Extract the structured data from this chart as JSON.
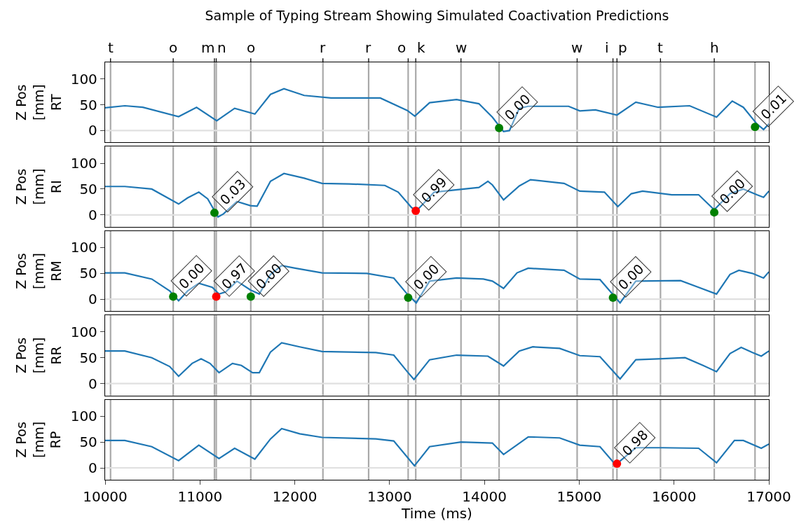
{
  "chart_data": [
    {
      "type": "line",
      "title": "Sample of Typing Stream Showing Simulated Coactivation Predictions",
      "ylabel": "Z Pos\n[mm]\nRT",
      "xlim": [
        10000,
        17000
      ],
      "ylim": [
        -23,
        132
      ],
      "yticks": [
        0,
        50,
        100
      ],
      "tick_labels": "y",
      "series": [
        {
          "color": "#1f77b4",
          "x": [
            10000,
            10208,
            10397,
            10775,
            10964,
            11177,
            11366,
            11579,
            11744,
            11886,
            12099,
            12382,
            12902,
            13186,
            13266,
            13422,
            13706,
            13942,
            14084,
            14202,
            14264,
            14368,
            14462,
            14888,
            15006,
            15171,
            15398,
            15597,
            15833,
            16164,
            16448,
            16614,
            16731,
            16873,
            16944,
            17000
          ],
          "values": [
            44,
            48,
            45,
            27,
            45,
            19,
            43,
            32,
            70,
            81,
            68,
            63,
            63,
            39,
            28,
            54,
            60,
            52,
            26,
            -2,
            0,
            43,
            47,
            47,
            38,
            40,
            30,
            55,
            45,
            48,
            26,
            57,
            45,
            13,
            2,
            13
          ]
        },
        {
          "type": "scatter",
          "marker": "circle",
          "x": [
            14155,
            16854
          ],
          "values": [
            5,
            7
          ],
          "colors": [
            "#008000",
            "#008000"
          ]
        }
      ],
      "ref_lines": [
        {
          "axis": "x",
          "value": 10057,
          "label": "t"
        },
        {
          "axis": "x",
          "value": 10718,
          "label": "o"
        },
        {
          "axis": "x",
          "value": 11153,
          "label": "m"
        },
        {
          "axis": "x",
          "value": 11172,
          "label": "n"
        },
        {
          "axis": "x",
          "value": 11536,
          "label": "o"
        },
        {
          "axis": "x",
          "value": 12297,
          "label": "r"
        },
        {
          "axis": "x",
          "value": 12779,
          "label": "r"
        },
        {
          "axis": "x",
          "value": 13196,
          "label": "o"
        },
        {
          "axis": "x",
          "value": 13276,
          "label": "k"
        },
        {
          "axis": "x",
          "value": 13753,
          "label": "w"
        },
        {
          "axis": "x",
          "value": 14155
        },
        {
          "axis": "x",
          "value": 14978,
          "label": "w"
        },
        {
          "axis": "x",
          "value": 15356,
          "label": "i"
        },
        {
          "axis": "x",
          "value": 15398,
          "label": "p"
        },
        {
          "axis": "x",
          "value": 15857,
          "label": "t"
        },
        {
          "axis": "x",
          "value": 16424,
          "label": "h"
        },
        {
          "axis": "x",
          "value": 16854
        },
        {
          "axis": "y",
          "value": 0,
          "color": "#e0e0e0"
        }
      ],
      "annotations": [
        {
          "text": "0.00",
          "x": 14155,
          "y": 5
        },
        {
          "text": "0.01",
          "x": 16854,
          "y": 7
        }
      ]
    },
    {
      "type": "line",
      "ylabel": "Z Pos\n[mm]\nRI",
      "xlim": [
        10000,
        17000
      ],
      "ylim": [
        -23,
        132
      ],
      "yticks": [
        0,
        50,
        100
      ],
      "tick_labels": "y",
      "series": [
        {
          "color": "#1f77b4",
          "x": [
            10000,
            10208,
            10492,
            10775,
            10870,
            10988,
            11082,
            11191,
            11248,
            11390,
            11532,
            11603,
            11744,
            11886,
            12099,
            12288,
            12572,
            12950,
            13091,
            13233,
            13290,
            13470,
            13942,
            14037,
            14084,
            14202,
            14368,
            14486,
            14840,
            15006,
            15266,
            15407,
            15549,
            15668,
            15975,
            16259,
            16424,
            16590,
            16731,
            16873,
            16944,
            17000
          ],
          "values": [
            55,
            55,
            50,
            21,
            33,
            44,
            31,
            -4,
            2,
            26,
            18,
            17,
            65,
            80,
            71,
            61,
            60,
            57,
            44,
            14,
            9,
            44,
            53,
            65,
            58,
            29,
            56,
            68,
            61,
            46,
            44,
            16,
            41,
            46,
            39,
            39,
            10,
            41,
            50,
            39,
            34,
            46
          ]
        },
        {
          "type": "scatter",
          "marker": "circle",
          "x": [
            11153,
            13276,
            16424
          ],
          "values": [
            4,
            8,
            5
          ],
          "colors": [
            "#008000",
            "#ff0000",
            "#008000"
          ]
        }
      ],
      "ref_lines": [
        {
          "axis": "x",
          "value": 10057
        },
        {
          "axis": "x",
          "value": 10718
        },
        {
          "axis": "x",
          "value": 11153
        },
        {
          "axis": "x",
          "value": 11172
        },
        {
          "axis": "x",
          "value": 11536
        },
        {
          "axis": "x",
          "value": 12297
        },
        {
          "axis": "x",
          "value": 12779
        },
        {
          "axis": "x",
          "value": 13196
        },
        {
          "axis": "x",
          "value": 13276
        },
        {
          "axis": "x",
          "value": 13753
        },
        {
          "axis": "x",
          "value": 14155
        },
        {
          "axis": "x",
          "value": 14978
        },
        {
          "axis": "x",
          "value": 15356
        },
        {
          "axis": "x",
          "value": 15398
        },
        {
          "axis": "x",
          "value": 15857
        },
        {
          "axis": "x",
          "value": 16424
        },
        {
          "axis": "x",
          "value": 16854
        },
        {
          "axis": "y",
          "value": 0,
          "color": "#e0e0e0"
        }
      ],
      "annotations": [
        {
          "text": "0.03",
          "x": 11153,
          "y": 4
        },
        {
          "text": "0.99",
          "x": 13276,
          "y": 8
        },
        {
          "text": "0.00",
          "x": 16424,
          "y": 5
        }
      ]
    },
    {
      "type": "line",
      "ylabel": "Z Pos\n[mm]\nRM",
      "xlim": [
        10000,
        17000
      ],
      "ylim": [
        -23,
        132
      ],
      "yticks": [
        0,
        50,
        100
      ],
      "tick_labels": "y",
      "series": [
        {
          "color": "#1f77b4",
          "x": [
            10000,
            10208,
            10492,
            10681,
            10775,
            10870,
            10988,
            11130,
            11201,
            11272,
            11390,
            11532,
            11626,
            11744,
            11862,
            12004,
            12288,
            12761,
            13044,
            13186,
            13281,
            13422,
            13706,
            13989,
            14084,
            14202,
            14344,
            14462,
            14840,
            15006,
            15219,
            15360,
            15431,
            15597,
            16069,
            16259,
            16448,
            16590,
            16684,
            16826,
            16944,
            17000
          ],
          "values": [
            51,
            51,
            39,
            16,
            -3,
            16,
            31,
            23,
            10,
            14,
            35,
            18,
            10,
            48,
            65,
            60,
            51,
            50,
            41,
            10,
            -7,
            35,
            41,
            39,
            35,
            21,
            51,
            60,
            56,
            39,
            38,
            8,
            -7,
            35,
            36,
            23,
            10,
            48,
            56,
            50,
            41,
            53
          ]
        },
        {
          "type": "scatter",
          "marker": "circle",
          "x": [
            10718,
            11172,
            11536,
            13196,
            15356
          ],
          "values": [
            5,
            5,
            5,
            3,
            3
          ],
          "colors": [
            "#008000",
            "#ff0000",
            "#008000",
            "#008000",
            "#008000"
          ]
        }
      ],
      "ref_lines": [
        {
          "axis": "x",
          "value": 10057
        },
        {
          "axis": "x",
          "value": 10718
        },
        {
          "axis": "x",
          "value": 11153
        },
        {
          "axis": "x",
          "value": 11172
        },
        {
          "axis": "x",
          "value": 11536
        },
        {
          "axis": "x",
          "value": 12297
        },
        {
          "axis": "x",
          "value": 12779
        },
        {
          "axis": "x",
          "value": 13196
        },
        {
          "axis": "x",
          "value": 13276
        },
        {
          "axis": "x",
          "value": 13753
        },
        {
          "axis": "x",
          "value": 14155
        },
        {
          "axis": "x",
          "value": 14978
        },
        {
          "axis": "x",
          "value": 15356
        },
        {
          "axis": "x",
          "value": 15398
        },
        {
          "axis": "x",
          "value": 15857
        },
        {
          "axis": "x",
          "value": 16424
        },
        {
          "axis": "x",
          "value": 16854
        },
        {
          "axis": "y",
          "value": 0,
          "color": "#e0e0e0"
        }
      ],
      "annotations": [
        {
          "text": "0.00",
          "x": 10718,
          "y": 5
        },
        {
          "text": "0.97",
          "x": 11172,
          "y": 5
        },
        {
          "text": "0.00",
          "x": 11536,
          "y": 5
        },
        {
          "text": "0.00",
          "x": 13196,
          "y": 3
        },
        {
          "text": "0.00",
          "x": 15356,
          "y": 3
        }
      ]
    },
    {
      "type": "line",
      "ylabel": "Z Pos\n[mm]\nRR",
      "xlim": [
        10000,
        17000
      ],
      "ylim": [
        -23,
        132
      ],
      "yticks": [
        0,
        50,
        100
      ],
      "tick_labels": "y",
      "series": [
        {
          "color": "#1f77b4",
          "x": [
            10000,
            10208,
            10492,
            10681,
            10775,
            10917,
            11012,
            11106,
            11201,
            11343,
            11437,
            11555,
            11626,
            11744,
            11862,
            12052,
            12288,
            12855,
            13044,
            13186,
            13257,
            13422,
            13706,
            14037,
            14202,
            14368,
            14510,
            14793,
            15006,
            15219,
            15431,
            15597,
            15880,
            16117,
            16306,
            16448,
            16590,
            16708,
            16826,
            16920,
            17000
          ],
          "values": [
            63,
            63,
            50,
            33,
            14,
            39,
            48,
            39,
            21,
            39,
            35,
            21,
            21,
            61,
            79,
            71,
            62,
            60,
            55,
            23,
            8,
            46,
            55,
            53,
            34,
            63,
            71,
            68,
            54,
            52,
            9,
            46,
            48,
            50,
            35,
            23,
            58,
            70,
            60,
            53,
            63
          ]
        }
      ],
      "ref_lines": [
        {
          "axis": "x",
          "value": 10057
        },
        {
          "axis": "x",
          "value": 10718
        },
        {
          "axis": "x",
          "value": 11153
        },
        {
          "axis": "x",
          "value": 11172
        },
        {
          "axis": "x",
          "value": 11536
        },
        {
          "axis": "x",
          "value": 12297
        },
        {
          "axis": "x",
          "value": 12779
        },
        {
          "axis": "x",
          "value": 13196
        },
        {
          "axis": "x",
          "value": 13276
        },
        {
          "axis": "x",
          "value": 13753
        },
        {
          "axis": "x",
          "value": 14155
        },
        {
          "axis": "x",
          "value": 14978
        },
        {
          "axis": "x",
          "value": 15356
        },
        {
          "axis": "x",
          "value": 15398
        },
        {
          "axis": "x",
          "value": 15857
        },
        {
          "axis": "x",
          "value": 16424
        },
        {
          "axis": "x",
          "value": 16854
        },
        {
          "axis": "y",
          "value": 0,
          "color": "#e0e0e0"
        }
      ]
    },
    {
      "type": "line",
      "ylabel": "Z Pos\n[mm]\nRP",
      "xlabel": "Time (ms)",
      "xlim": [
        10000,
        17000
      ],
      "xticks": [
        10000,
        11000,
        12000,
        13000,
        14000,
        15000,
        16000,
        17000
      ],
      "ylim": [
        -23,
        132
      ],
      "yticks": [
        0,
        50,
        100
      ],
      "series": [
        {
          "color": "#1f77b4",
          "x": [
            10000,
            10208,
            10492,
            10775,
            10988,
            11201,
            11366,
            11579,
            11744,
            11862,
            12052,
            12288,
            12855,
            13044,
            13262,
            13422,
            13753,
            14084,
            14202,
            14462,
            14793,
            15006,
            15219,
            15384,
            15597,
            15880,
            16259,
            16448,
            16637,
            16731,
            16920,
            17000
          ],
          "values": [
            53,
            53,
            41,
            14,
            44,
            18,
            38,
            17,
            56,
            76,
            66,
            59,
            56,
            52,
            4,
            41,
            50,
            48,
            26,
            60,
            58,
            44,
            41,
            6,
            39,
            39,
            38,
            10,
            53,
            53,
            38,
            46
          ]
        },
        {
          "type": "scatter",
          "marker": "circle",
          "x": [
            15398
          ],
          "values": [
            8
          ],
          "colors": [
            "#ff0000"
          ]
        }
      ],
      "ref_lines": [
        {
          "axis": "x",
          "value": 10057
        },
        {
          "axis": "x",
          "value": 10718
        },
        {
          "axis": "x",
          "value": 11153
        },
        {
          "axis": "x",
          "value": 11172
        },
        {
          "axis": "x",
          "value": 11536
        },
        {
          "axis": "x",
          "value": 12297
        },
        {
          "axis": "x",
          "value": 12779
        },
        {
          "axis": "x",
          "value": 13196
        },
        {
          "axis": "x",
          "value": 13276
        },
        {
          "axis": "x",
          "value": 13753
        },
        {
          "axis": "x",
          "value": 14155
        },
        {
          "axis": "x",
          "value": 14978
        },
        {
          "axis": "x",
          "value": 15356
        },
        {
          "axis": "x",
          "value": 15398
        },
        {
          "axis": "x",
          "value": 15857
        },
        {
          "axis": "x",
          "value": 16424
        },
        {
          "axis": "x",
          "value": 16854
        },
        {
          "axis": "y",
          "value": 0,
          "color": "#e0e0e0"
        }
      ],
      "annotations": [
        {
          "text": "0.98",
          "x": 15398,
          "y": 8
        }
      ]
    }
  ]
}
